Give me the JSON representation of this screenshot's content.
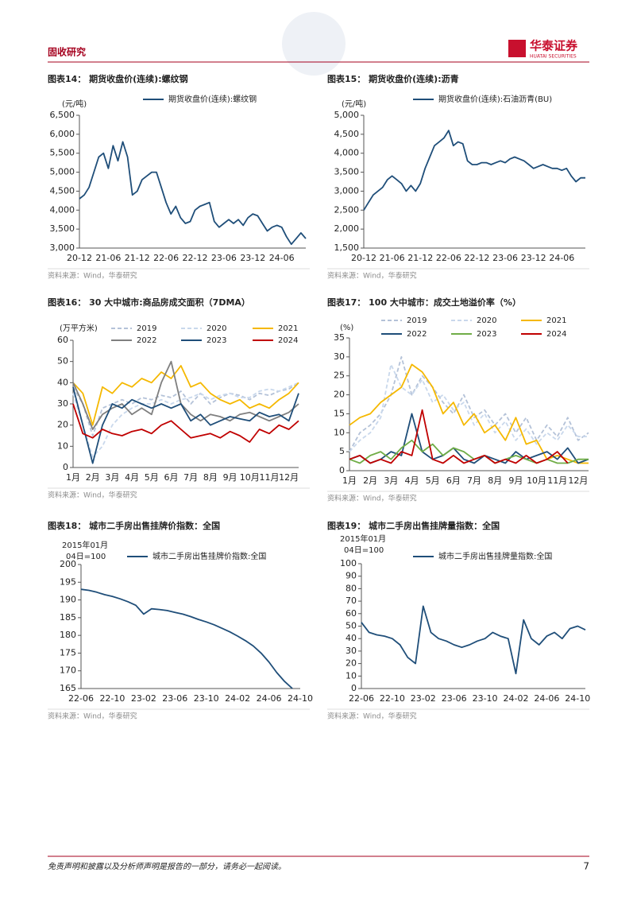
{
  "header": {
    "section": "固收研究",
    "logo_cn": "华泰证券",
    "logo_en": "HUATAI SECURITIES"
  },
  "footer": {
    "disclaimer": "免责声明和披露以及分析师声明是报告的一部分，请务必一起阅读。",
    "page": "7"
  },
  "chart_data": [
    {
      "type": "line",
      "title": "图表14：  期货收盘价(连续):螺纹钢",
      "unit": "(元/吨)",
      "source": "资料来源：Wind，华泰研究",
      "categories": [
        "20-12",
        null,
        null,
        null,
        null,
        null,
        "21-06",
        null,
        null,
        null,
        null,
        null,
        "21-12",
        null,
        null,
        null,
        null,
        null,
        "22-06",
        null,
        null,
        null,
        null,
        null,
        "22-12",
        null,
        null,
        null,
        null,
        null,
        "23-06",
        null,
        null,
        null,
        null,
        null,
        "23-12",
        null,
        null,
        null,
        null,
        null,
        "24-06",
        null,
        null,
        null,
        null,
        null
      ],
      "ylim": [
        3000,
        6500
      ],
      "yticks": [
        {
          "value": 3000,
          "label": "3,000"
        },
        {
          "value": 3500,
          "label": "3,500"
        },
        {
          "value": 4000,
          "label": "4,000"
        },
        {
          "value": 4500,
          "label": "4,500"
        },
        {
          "value": 5000,
          "label": "5,000"
        },
        {
          "value": 5500,
          "label": "5,500"
        },
        {
          "value": 6000,
          "label": "6,000"
        },
        {
          "value": 6500,
          "label": "6,500"
        }
      ],
      "series": [
        {
          "name": "期货收盘价(连续):螺纹钢",
          "color": "#1f4e79",
          "values": [
            4300,
            4400,
            4600,
            5000,
            5400,
            5500,
            5100,
            5700,
            5300,
            5800,
            5400,
            4400,
            4500,
            4800,
            4900,
            5000,
            5000,
            4600,
            4200,
            3900,
            4100,
            3800,
            3650,
            3700,
            4000,
            4100,
            4150,
            4200,
            3700,
            3550,
            3650,
            3750,
            3650,
            3750,
            3600,
            3800,
            3900,
            3850,
            3650,
            3450,
            3550,
            3600,
            3550,
            3300,
            3100,
            3250,
            3400,
            3250
          ]
        }
      ]
    },
    {
      "type": "line",
      "title": "图表15：  期货收盘价(连续):沥青",
      "unit": "(元/吨)",
      "source": "资料来源：Wind，华泰研究",
      "categories": [
        "20-12",
        null,
        null,
        null,
        null,
        null,
        "21-06",
        null,
        null,
        null,
        null,
        null,
        "21-12",
        null,
        null,
        null,
        null,
        null,
        "22-06",
        null,
        null,
        null,
        null,
        null,
        "22-12",
        null,
        null,
        null,
        null,
        null,
        "23-06",
        null,
        null,
        null,
        null,
        null,
        "23-12",
        null,
        null,
        null,
        null,
        null,
        "24-06",
        null,
        null,
        null,
        null,
        null
      ],
      "ylim": [
        1500,
        5000
      ],
      "yticks": [
        {
          "value": 1500,
          "label": "1,500"
        },
        {
          "value": 2000,
          "label": "2,000"
        },
        {
          "value": 2500,
          "label": "2,500"
        },
        {
          "value": 3000,
          "label": "3,000"
        },
        {
          "value": 3500,
          "label": "3,500"
        },
        {
          "value": 4000,
          "label": "4,000"
        },
        {
          "value": 4500,
          "label": "4,500"
        },
        {
          "value": 5000,
          "label": "5,000"
        }
      ],
      "series": [
        {
          "name": "期货收盘价(连续):石油沥青(BU)",
          "color": "#1f4e79",
          "values": [
            2500,
            2700,
            2900,
            3000,
            3100,
            3300,
            3400,
            3300,
            3200,
            3000,
            3150,
            3000,
            3200,
            3600,
            3900,
            4200,
            4300,
            4400,
            4600,
            4200,
            4300,
            4250,
            3800,
            3700,
            3700,
            3750,
            3750,
            3700,
            3750,
            3800,
            3750,
            3850,
            3900,
            3850,
            3800,
            3700,
            3600,
            3650,
            3700,
            3650,
            3600,
            3600,
            3550,
            3600,
            3400,
            3250,
            3350,
            3350
          ]
        }
      ]
    },
    {
      "type": "line",
      "title": "图表16：  30 大中城市:商品房成交面积（7DMA）",
      "unit": "(万平方米)",
      "source": "资料来源：Wind，华泰研究",
      "categories": [
        "1月",
        null,
        "2月",
        null,
        "3月",
        null,
        "4月",
        null,
        "5月",
        null,
        "6月",
        null,
        "7月",
        null,
        "8月",
        null,
        "9月",
        null,
        "10月",
        null,
        "11月",
        null,
        "12月",
        null
      ],
      "ylim": [
        0,
        60
      ],
      "yticks": [
        0,
        10,
        20,
        30,
        40,
        50,
        60
      ],
      "series": [
        {
          "name": "2019",
          "color": "#b4c2d8",
          "dashed": true,
          "values": [
            38,
            30,
            15,
            28,
            30,
            32,
            30,
            33,
            32,
            34,
            33,
            36,
            30,
            35,
            30,
            33,
            35,
            34,
            32,
            35,
            34,
            36,
            37,
            40
          ]
        },
        {
          "name": "2020",
          "color": "#c9d8ec",
          "dashed": true,
          "values": [
            35,
            20,
            5,
            10,
            20,
            25,
            28,
            30,
            30,
            32,
            30,
            32,
            33,
            35,
            32,
            34,
            35,
            33,
            33,
            36,
            37,
            36,
            38,
            40
          ]
        },
        {
          "name": "2021",
          "color": "#f5b800",
          "values": [
            40,
            35,
            20,
            38,
            35,
            40,
            38,
            42,
            40,
            45,
            42,
            48,
            38,
            40,
            35,
            32,
            30,
            32,
            28,
            30,
            28,
            32,
            35,
            40
          ]
        },
        {
          "name": "2022",
          "color": "#7f7f7f",
          "values": [
            40,
            30,
            18,
            25,
            28,
            30,
            25,
            28,
            25,
            40,
            50,
            30,
            25,
            22,
            25,
            24,
            22,
            25,
            26,
            24,
            22,
            24,
            26,
            30
          ]
        },
        {
          "name": "2023",
          "color": "#1f4e79",
          "values": [
            38,
            20,
            2,
            20,
            30,
            28,
            32,
            30,
            28,
            30,
            28,
            30,
            22,
            25,
            20,
            22,
            24,
            23,
            22,
            26,
            24,
            25,
            22,
            35
          ]
        },
        {
          "name": "2024",
          "color": "#c00000",
          "values": [
            30,
            16,
            14,
            18,
            16,
            15,
            17,
            18,
            16,
            20,
            22,
            18,
            14,
            15,
            16,
            14,
            17,
            15,
            12,
            18,
            16,
            20,
            18,
            22
          ]
        }
      ]
    },
    {
      "type": "line",
      "title": "图表17：  100 大中城市：成交土地溢价率（%）",
      "unit": "(%)",
      "source": "资料来源：Wind，华泰研究",
      "categories": [
        "1月",
        null,
        "2月",
        null,
        "3月",
        null,
        "4月",
        null,
        "5月",
        null,
        "6月",
        null,
        "7月",
        null,
        "8月",
        null,
        "9月",
        null,
        "10月",
        null,
        "11月",
        null,
        "12月",
        null
      ],
      "ylim": [
        0,
        35
      ],
      "yticks": [
        0,
        5,
        10,
        15,
        20,
        25,
        30,
        35
      ],
      "series": [
        {
          "name": "2019",
          "color": "#b4c2d8",
          "dashed": true,
          "values": [
            5,
            10,
            12,
            15,
            20,
            30,
            20,
            25,
            22,
            18,
            15,
            20,
            14,
            16,
            12,
            15,
            10,
            14,
            8,
            12,
            9,
            14,
            8,
            10
          ]
        },
        {
          "name": "2020",
          "color": "#c9d8ec",
          "dashed": true,
          "values": [
            5,
            8,
            10,
            14,
            28,
            22,
            20,
            24,
            18,
            20,
            16,
            18,
            12,
            15,
            10,
            13,
            8,
            11,
            7,
            10,
            8,
            12,
            9,
            9
          ]
        },
        {
          "name": "2021",
          "color": "#f5b800",
          "values": [
            12,
            14,
            15,
            18,
            20,
            22,
            28,
            26,
            22,
            15,
            18,
            12,
            15,
            10,
            12,
            8,
            14,
            7,
            8,
            3,
            4,
            3,
            2,
            2
          ]
        },
        {
          "name": "2022",
          "color": "#1f4e79",
          "values": [
            3,
            4,
            2,
            3,
            5,
            4,
            15,
            5,
            3,
            4,
            6,
            3,
            2,
            4,
            3,
            2,
            5,
            3,
            4,
            5,
            3,
            6,
            2,
            3
          ]
        },
        {
          "name": "2023",
          "color": "#70ad47",
          "values": [
            3,
            2,
            4,
            5,
            3,
            6,
            8,
            5,
            7,
            4,
            6,
            5,
            3,
            4,
            2,
            3,
            4,
            3,
            2,
            3,
            2,
            2,
            3,
            3
          ]
        },
        {
          "name": "2024",
          "color": "#c00000",
          "values": [
            3,
            4,
            2,
            3,
            2,
            5,
            4,
            16,
            3,
            2,
            4,
            2,
            3,
            4,
            2,
            3,
            2,
            4,
            2,
            3,
            5,
            2,
            null,
            null
          ]
        }
      ]
    },
    {
      "type": "line",
      "title": "图表18：  城市二手房出售挂牌价指数：全国",
      "unit": "2015年01月",
      "unit2": "04日=100",
      "source": "资料来源：Wind，华泰研究",
      "categories": [
        "22-06",
        null,
        null,
        null,
        "22-10",
        null,
        null,
        null,
        "23-02",
        null,
        null,
        null,
        "23-06",
        null,
        null,
        null,
        "23-10",
        null,
        null,
        null,
        "24-02",
        null,
        null,
        null,
        "24-06",
        null,
        null,
        null,
        "24-10"
      ],
      "ylim": [
        165,
        200
      ],
      "yticks": [
        165,
        170,
        175,
        180,
        185,
        190,
        195,
        200
      ],
      "series": [
        {
          "name": "城市二手房出售挂牌价指数:全国",
          "color": "#1f4e79",
          "values": [
            193,
            192.7,
            192.2,
            191.5,
            191,
            190.3,
            189.5,
            188.5,
            186,
            187.5,
            187.3,
            187,
            186.5,
            186,
            185.3,
            184.5,
            183.8,
            183,
            182,
            181,
            179.8,
            178.5,
            177,
            175,
            172.5,
            169.5,
            167,
            165,
            null
          ]
        }
      ]
    },
    {
      "type": "line",
      "title": "图表19：  城市二手房出售挂牌量指数：全国",
      "unit": "2015年01月",
      "unit2": "04日=100",
      "source": "资料来源：Wind，华泰研究",
      "categories": [
        "22-06",
        null,
        null,
        null,
        "22-10",
        null,
        null,
        null,
        "23-02",
        null,
        null,
        null,
        "23-06",
        null,
        null,
        null,
        "23-10",
        null,
        null,
        null,
        "24-02",
        null,
        null,
        null,
        "24-06",
        null,
        null,
        null,
        "24-10",
        null
      ],
      "ylim": [
        0,
        100
      ],
      "yticks": [
        0,
        10,
        20,
        30,
        40,
        50,
        60,
        70,
        80,
        90,
        100
      ],
      "series": [
        {
          "name": "城市二手房出售挂牌量指数:全国",
          "color": "#1f4e79",
          "values": [
            53,
            45,
            43,
            42,
            40,
            35,
            25,
            20,
            66,
            45,
            40,
            38,
            35,
            33,
            35,
            38,
            40,
            45,
            42,
            40,
            12,
            55,
            40,
            35,
            42,
            45,
            40,
            48,
            50,
            47
          ]
        }
      ]
    }
  ]
}
